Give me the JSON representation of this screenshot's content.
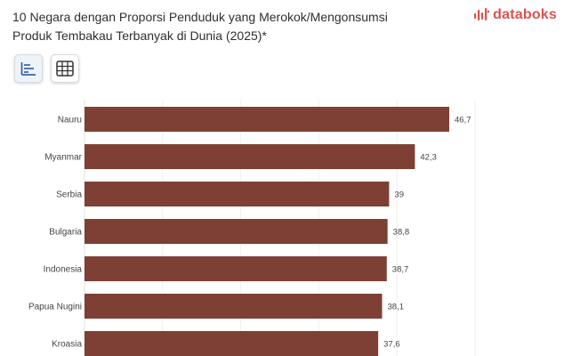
{
  "title": "10 Negara dengan Proporsi Penduduk yang Merokok/Mengonsumsi Produk Tembakau Terbanyak di Dunia (2025)*",
  "brand": {
    "name": "databoks",
    "color": "#d9534f"
  },
  "toolbar": {
    "chart_view_icon": "bar-chart-icon",
    "table_view_icon": "table-grid-icon",
    "active_view": "chart"
  },
  "chart_data": {
    "type": "bar",
    "orientation": "horizontal",
    "categories": [
      "Nauru",
      "Myanmar",
      "Serbia",
      "Bulgaria",
      "Indonesia",
      "Papua Nugini",
      "Kroasia"
    ],
    "values": [
      46.7,
      42.3,
      39,
      38.8,
      38.7,
      38.1,
      37.6
    ],
    "value_labels": [
      "46,7",
      "42,3",
      "39",
      "38,8",
      "38,7",
      "38,1",
      "37,6"
    ],
    "bar_color": "#7e4035",
    "xlim": [
      0,
      50
    ],
    "grid": true,
    "legend": "none"
  }
}
